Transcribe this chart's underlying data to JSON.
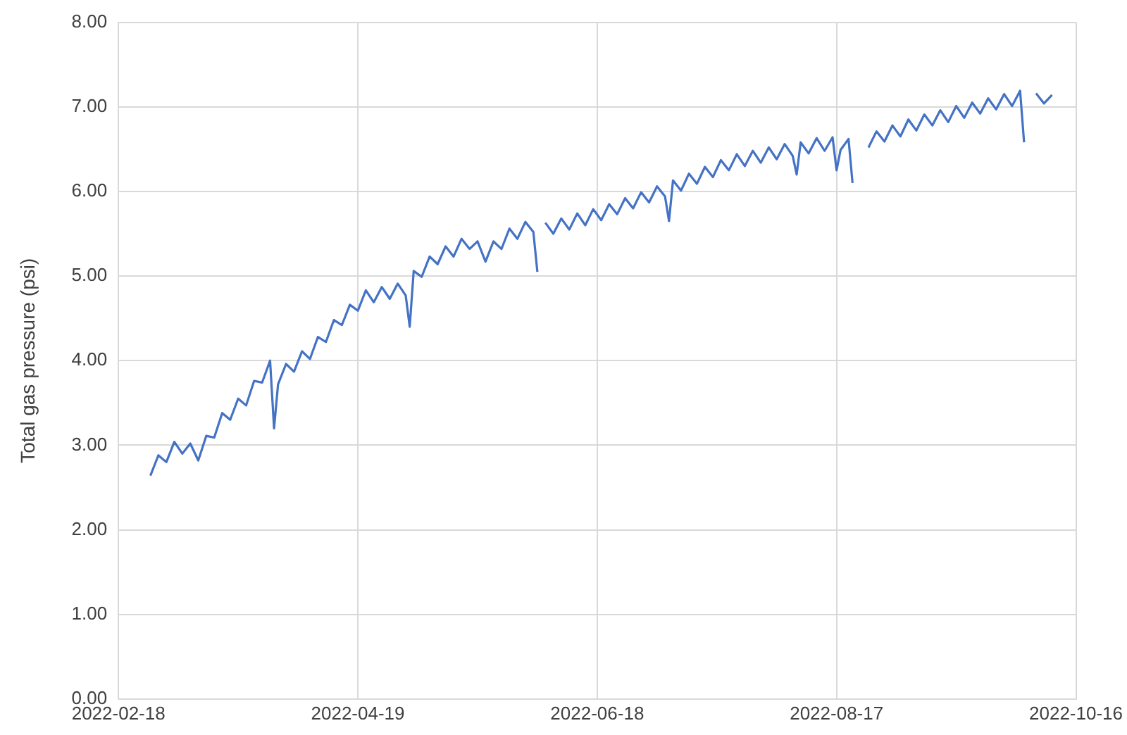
{
  "chart_data": {
    "type": "line",
    "ylabel": "Total gas pressure (psi)",
    "x": [
      "2022-02-26",
      "2022-02-28",
      "2022-03-02",
      "2022-03-04",
      "2022-03-06",
      "2022-03-08",
      "2022-03-10",
      "2022-03-12",
      "2022-03-14",
      "2022-03-16",
      "2022-03-18",
      "2022-03-20",
      "2022-03-22",
      "2022-03-24",
      "2022-03-26",
      "2022-03-28",
      "2022-03-29",
      "2022-03-30",
      "2022-04-01",
      "2022-04-03",
      "2022-04-05",
      "2022-04-07",
      "2022-04-09",
      "2022-04-11",
      "2022-04-13",
      "2022-04-15",
      "2022-04-17",
      "2022-04-19",
      "2022-04-21",
      "2022-04-23",
      "2022-04-25",
      "2022-04-27",
      "2022-04-29",
      "2022-05-01",
      "2022-05-02",
      "2022-05-03",
      "2022-05-05",
      "2022-05-07",
      "2022-05-09",
      "2022-05-11",
      "2022-05-13",
      "2022-05-15",
      "2022-05-17",
      "2022-05-19",
      "2022-05-21",
      "2022-05-23",
      "2022-05-25",
      "2022-05-27",
      "2022-05-29",
      "2022-05-31",
      "2022-06-02",
      "2022-06-03",
      "2022-06-04",
      "2022-06-05",
      "2022-06-07",
      "2022-06-09",
      "2022-06-11",
      "2022-06-13",
      "2022-06-15",
      "2022-06-17",
      "2022-06-19",
      "2022-06-21",
      "2022-06-23",
      "2022-06-25",
      "2022-06-27",
      "2022-06-29",
      "2022-07-01",
      "2022-07-03",
      "2022-07-05",
      "2022-07-06",
      "2022-07-07",
      "2022-07-09",
      "2022-07-11",
      "2022-07-13",
      "2022-07-15",
      "2022-07-17",
      "2022-07-19",
      "2022-07-21",
      "2022-07-23",
      "2022-07-25",
      "2022-07-27",
      "2022-07-29",
      "2022-07-31",
      "2022-08-02",
      "2022-08-04",
      "2022-08-06",
      "2022-08-07",
      "2022-08-08",
      "2022-08-10",
      "2022-08-12",
      "2022-08-14",
      "2022-08-16",
      "2022-08-17",
      "2022-08-18",
      "2022-08-20",
      "2022-08-21",
      "2022-08-22",
      "2022-08-25",
      "2022-08-27",
      "2022-08-29",
      "2022-08-31",
      "2022-09-02",
      "2022-09-04",
      "2022-09-06",
      "2022-09-08",
      "2022-09-10",
      "2022-09-12",
      "2022-09-14",
      "2022-09-16",
      "2022-09-18",
      "2022-09-20",
      "2022-09-22",
      "2022-09-24",
      "2022-09-26",
      "2022-09-28",
      "2022-09-30",
      "2022-10-02",
      "2022-10-03",
      "2022-10-04",
      "2022-10-06",
      "2022-10-08",
      "2022-10-10"
    ],
    "series": [
      {
        "color": "#4472c4",
        "values": [
          2.64,
          2.88,
          2.8,
          3.04,
          2.9,
          3.02,
          2.82,
          3.11,
          3.09,
          3.38,
          3.3,
          3.55,
          3.47,
          3.76,
          3.74,
          4.0,
          3.2,
          3.72,
          3.96,
          3.87,
          4.11,
          4.02,
          4.28,
          4.22,
          4.48,
          4.42,
          4.66,
          4.59,
          4.83,
          4.69,
          4.87,
          4.73,
          4.91,
          4.77,
          4.4,
          5.06,
          4.99,
          5.23,
          5.14,
          5.35,
          5.23,
          5.44,
          5.32,
          5.41,
          5.17,
          5.41,
          5.32,
          5.56,
          5.44,
          5.64,
          5.52,
          5.05,
          null,
          5.63,
          5.5,
          5.68,
          5.55,
          5.74,
          5.6,
          5.79,
          5.66,
          5.85,
          5.73,
          5.92,
          5.8,
          5.99,
          5.87,
          6.06,
          5.94,
          5.65,
          6.13,
          6.01,
          6.21,
          6.09,
          6.29,
          6.17,
          6.37,
          6.25,
          6.44,
          6.3,
          6.48,
          6.34,
          6.52,
          6.38,
          6.56,
          6.42,
          6.2,
          6.58,
          6.45,
          6.63,
          6.48,
          6.64,
          6.25,
          6.49,
          6.62,
          6.1,
          null,
          6.52,
          6.71,
          6.59,
          6.78,
          6.65,
          6.85,
          6.72,
          6.91,
          6.78,
          6.96,
          6.82,
          7.01,
          6.87,
          7.05,
          6.92,
          7.1,
          6.97,
          7.15,
          7.01,
          7.19,
          6.58,
          null,
          7.16,
          7.04,
          7.14
        ]
      }
    ],
    "xlim": [
      "2022-02-18",
      "2022-10-16"
    ],
    "xticks": [
      "2022-02-18",
      "2022-04-19",
      "2022-06-18",
      "2022-08-17",
      "2022-10-16"
    ],
    "ylim": [
      0,
      8
    ],
    "yticks": [
      {
        "value": 0,
        "label": "0.00"
      },
      {
        "value": 1,
        "label": "1.00"
      },
      {
        "value": 2,
        "label": "2.00"
      },
      {
        "value": 3,
        "label": "3.00"
      },
      {
        "value": 4,
        "label": "4.00"
      },
      {
        "value": 5,
        "label": "5.00"
      },
      {
        "value": 6,
        "label": "6.00"
      },
      {
        "value": 7,
        "label": "7.00"
      },
      {
        "value": 8,
        "label": "8.00"
      }
    ],
    "grid": true,
    "marker": "none",
    "line_style": "solid",
    "legend": false
  }
}
